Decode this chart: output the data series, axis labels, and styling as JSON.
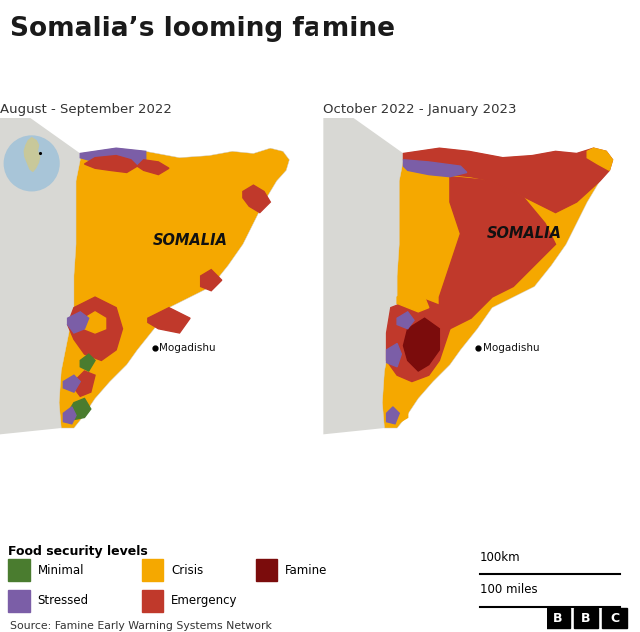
{
  "title": "Somalia’s looming famine",
  "subtitle_left": "August - September 2022",
  "subtitle_right": "October 2022 - January 2023",
  "somalia_label": "SOMALIA",
  "mogadishu_label": "Mogadishu",
  "source_text": "Source: Famine Early Warning Systems Network",
  "scale_km": "100km",
  "scale_miles": "100 miles",
  "legend_title": "Food security levels",
  "legend_items": [
    {
      "label": "Minimal",
      "color": "#4a7c2f"
    },
    {
      "label": "Stressed",
      "color": "#7b5ea7"
    },
    {
      "label": "Crisis",
      "color": "#f5a800"
    },
    {
      "label": "Emergency",
      "color": "#c0392b"
    },
    {
      "label": "Famine",
      "color": "#7b0c0c"
    }
  ],
  "bg_color": "#b8c9d9",
  "surrounding_color": "#d8d8d4",
  "bottom_panel_color": "#dde4eb",
  "title_color": "#1a1a1a",
  "subtitle_color": "#333333",
  "crisis_color": "#f5a800",
  "emergency_color": "#c0392b",
  "famine_color": "#7b0c0c",
  "stressed_color": "#7b5ea7",
  "minimal_color": "#4a7c2f",
  "bbc_bg": "#000000",
  "bbc_text": "#ffffff"
}
